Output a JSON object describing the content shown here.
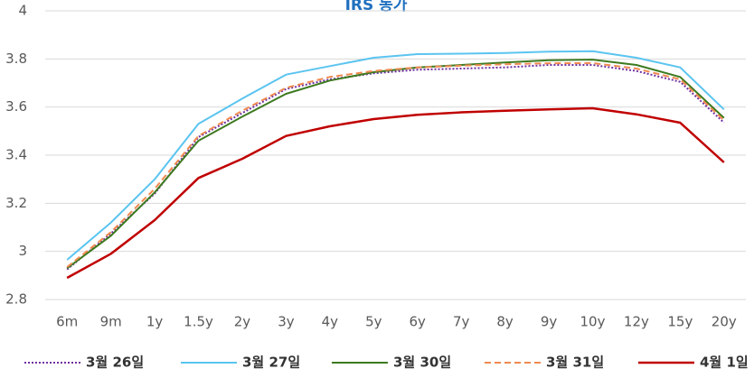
{
  "chart_data": {
    "type": "line",
    "title": "IRS 동가",
    "xlabel": "",
    "ylabel": "",
    "categories": [
      "6m",
      "9m",
      "1y",
      "1.5y",
      "2y",
      "3y",
      "4y",
      "5y",
      "6y",
      "7y",
      "8y",
      "9y",
      "10y",
      "12y",
      "15y",
      "20y"
    ],
    "ylim": [
      2.8,
      4
    ],
    "yticks": [
      "2.8",
      "3",
      "3.2",
      "3.4",
      "3.6",
      "3.8",
      "4"
    ],
    "grid": "horizontal",
    "legend_position": "bottom",
    "series": [
      {
        "name": "3월 26일",
        "color": "#7030a0",
        "dash": "dotted",
        "values": [
          2.925,
          3.075,
          3.24,
          3.475,
          3.575,
          3.675,
          3.715,
          3.74,
          3.755,
          3.76,
          3.765,
          3.775,
          3.775,
          3.75,
          3.705,
          3.535
        ]
      },
      {
        "name": "3월 27일",
        "color": "#5bc4f0",
        "dash": "solid",
        "values": [
          2.965,
          3.12,
          3.3,
          3.53,
          3.635,
          3.735,
          3.77,
          3.805,
          3.82,
          3.822,
          3.825,
          3.83,
          3.832,
          3.805,
          3.765,
          3.59
        ]
      },
      {
        "name": "3월 30일",
        "color": "#3d7a1f",
        "dash": "solid",
        "values": [
          2.93,
          3.065,
          3.245,
          3.46,
          3.56,
          3.655,
          3.71,
          3.745,
          3.765,
          3.775,
          3.785,
          3.795,
          3.797,
          3.775,
          3.725,
          3.555
        ]
      },
      {
        "name": "3월 31일",
        "color": "#f08a50",
        "dash": "dashed",
        "values": [
          2.935,
          3.08,
          3.26,
          3.48,
          3.585,
          3.68,
          3.725,
          3.75,
          3.765,
          3.772,
          3.778,
          3.782,
          3.783,
          3.76,
          3.715,
          3.545
        ]
      },
      {
        "name": "4월 1일",
        "color": "#c00000",
        "dash": "solid",
        "values": [
          2.89,
          2.99,
          3.13,
          3.305,
          3.385,
          3.48,
          3.52,
          3.55,
          3.568,
          3.578,
          3.585,
          3.59,
          3.595,
          3.57,
          3.535,
          3.37
        ]
      }
    ]
  }
}
